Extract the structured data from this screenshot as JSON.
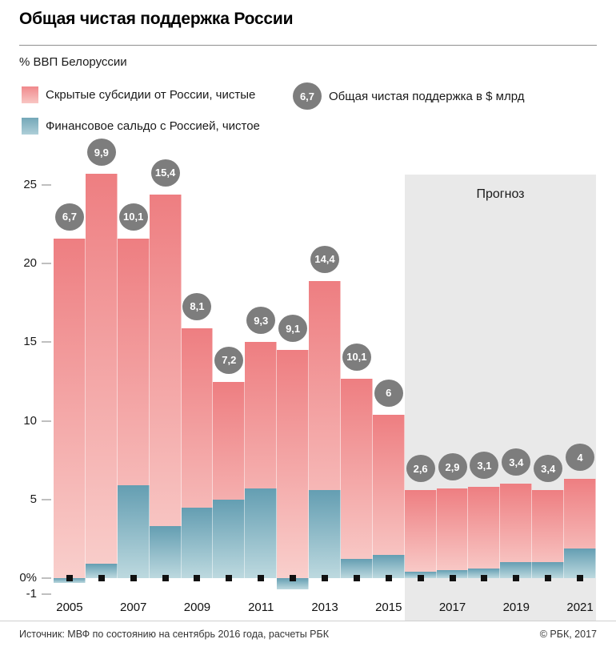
{
  "header": {
    "title": "Общая чистая поддержка России",
    "unit_label": "% ВВП Белоруссии"
  },
  "legend": {
    "subsidies_label": "Скрытые субсидии от России, чистые",
    "balance_label": "Финансовое сальдо с Россией, чистое",
    "bubble_value": "6,7",
    "bubble_label": "Общая чистая поддержка в $ млрд"
  },
  "chart_data": {
    "type": "bar",
    "title": "Общая чистая поддержка России",
    "ylabel": "% ВВП Белоруссии",
    "years": [
      2005,
      2006,
      2007,
      2008,
      2009,
      2010,
      2011,
      2012,
      2013,
      2014,
      2015,
      2016,
      2017,
      2018,
      2019,
      2020,
      2021
    ],
    "series": [
      {
        "name": "Скрытые субсидии от России, чистые",
        "values": [
          21.6,
          25.7,
          21.6,
          24.4,
          15.9,
          12.5,
          15.0,
          14.5,
          18.9,
          12.7,
          10.4,
          5.6,
          5.7,
          5.8,
          6.0,
          5.6,
          6.3
        ]
      },
      {
        "name": "Финансовое сальдо с Россией, чистое",
        "values": [
          -0.3,
          0.9,
          5.9,
          3.3,
          4.5,
          5.0,
          5.7,
          -0.7,
          5.6,
          1.2,
          1.5,
          0.4,
          0.5,
          0.6,
          1.0,
          1.0,
          1.9
        ]
      }
    ],
    "bubble_series": {
      "name": "Общая чистая поддержка в $ млрд",
      "values": [
        "6,7",
        "9,9",
        "10,1",
        "15,4",
        "8,1",
        "7,2",
        "9,3",
        "9,1",
        "14,4",
        "10,1",
        "6",
        "2,6",
        "2,9",
        "3,1",
        "3,4",
        "3,4",
        "4"
      ]
    },
    "zero_markers": true,
    "forecast": {
      "label": "Прогноз",
      "from_year": 2016
    },
    "y_ticks": [
      {
        "value": 25,
        "label": "25"
      },
      {
        "value": 20,
        "label": "20"
      },
      {
        "value": 15,
        "label": "15"
      },
      {
        "value": 10,
        "label": "10"
      },
      {
        "value": 5,
        "label": "5"
      },
      {
        "value": 0,
        "label": "0%"
      },
      {
        "value": -1,
        "label": "-1"
      }
    ],
    "x_tick_years": [
      2005,
      2007,
      2009,
      2011,
      2013,
      2015,
      2017,
      2019,
      2021
    ],
    "ylim": [
      -1.5,
      25.7
    ],
    "grid": "tick-dashes-only",
    "legend_position": "top",
    "colors": {
      "subsidies_top": "#ee7e81",
      "subsidies_bottom": "#f9cfcc",
      "balance_top": "#649eb2",
      "balance_bottom": "#bdd9df",
      "bubble_bg": "#7d7d7d",
      "bubble_text": "#ffffff",
      "forecast_bg": "#e9e9e9",
      "marker": "#111111",
      "tick_dash": "#bfbfbf"
    }
  },
  "footer": {
    "source": "Источник: МВФ по состоянию на сентябрь 2016 года, расчеты РБК",
    "copyright": "© РБК, 2017"
  }
}
